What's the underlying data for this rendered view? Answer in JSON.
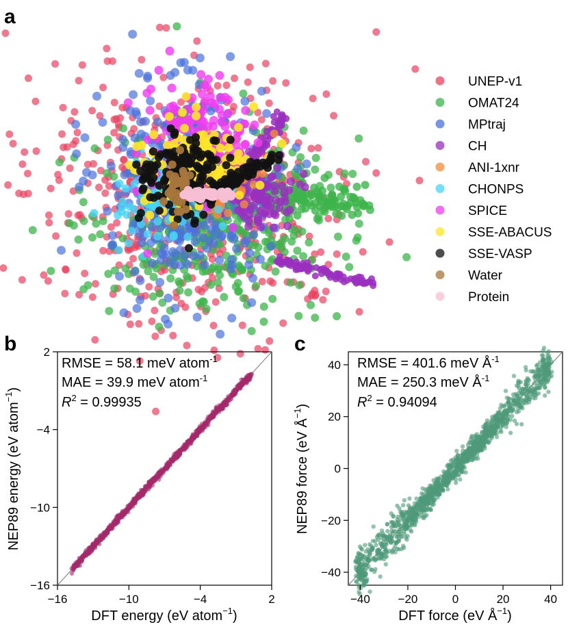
{
  "panels": {
    "a": "a",
    "b": "b",
    "c": "c"
  },
  "chart_data": [
    {
      "type": "scatter",
      "panel": "a",
      "legend_placement": "right",
      "series": [
        {
          "name": "UNEP-v1",
          "color": "#e8415f"
        },
        {
          "name": "OMAT24",
          "color": "#3db44b"
        },
        {
          "name": "MPtraj",
          "color": "#4a72dc"
        },
        {
          "name": "CH",
          "color": "#9a2fbf"
        },
        {
          "name": "ANI-1xnr",
          "color": "#f28c3a"
        },
        {
          "name": "CHONPS",
          "color": "#47d3f5"
        },
        {
          "name": "SPICE",
          "color": "#ef3cf0"
        },
        {
          "name": "SSE-ABACUS",
          "color": "#fde428"
        },
        {
          "name": "SSE-VASP",
          "color": "#111111"
        },
        {
          "name": "Water",
          "color": "#a7763c"
        },
        {
          "name": "Protein",
          "color": "#f7bfd4"
        }
      ]
    },
    {
      "type": "scatter",
      "panel": "b",
      "xlabel": "DFT energy (eV atom",
      "xlabel_sup": "−1",
      "xlabel_end": ")",
      "ylabel": "NEP89 energy (eV atom",
      "ylabel_sup": "−1",
      "ylabel_end": ")",
      "xlim": [
        -16,
        2
      ],
      "ylim": [
        -16,
        2
      ],
      "xticks": [
        "−16",
        "−10",
        "−4",
        "2"
      ],
      "yticks": [
        "−16",
        "−10",
        "−4",
        "2"
      ],
      "xtick_values": [
        -16,
        -10,
        -4,
        2
      ],
      "ytick_values": [
        -16,
        -10,
        -4,
        2
      ],
      "color": "#a32a6a",
      "x_range_data": [
        -14.8,
        0.3
      ],
      "stats": {
        "rmse_prefix": "RMSE = 58.1 meV atom",
        "rmse_sup": "-1",
        "mae_prefix": "MAE = 39.9 meV atom",
        "mae_sup": "-1",
        "r2_symbol": "R",
        "r2_sup": "2",
        "r2_value": " = 0.99935"
      }
    },
    {
      "type": "scatter",
      "panel": "c",
      "xlabel": "DFT force (eV Å",
      "xlabel_sup": "−1",
      "xlabel_end": ")",
      "ylabel": "NEP89 force (eV Å",
      "ylabel_sup": "−1",
      "ylabel_end": ")",
      "xlim": [
        -45,
        45
      ],
      "ylim": [
        -45,
        45
      ],
      "xticks": [
        "−40",
        "−20",
        "0",
        "20",
        "40"
      ],
      "yticks": [
        "−40",
        "−20",
        "0",
        "20",
        "40"
      ],
      "xtick_values": [
        -40,
        -20,
        0,
        20,
        40
      ],
      "ytick_values": [
        -40,
        -20,
        0,
        20,
        40
      ],
      "color": "#4e9a7a",
      "x_range_data": [
        -40,
        38
      ],
      "stats": {
        "rmse_prefix": "RMSE = 401.6 meV Å",
        "rmse_sup": "-1",
        "mae_prefix": "MAE = 250.3 meV Å",
        "mae_sup": "-1",
        "r2_symbol": "R",
        "r2_sup": "2",
        "r2_value": " = 0.94094"
      }
    }
  ]
}
